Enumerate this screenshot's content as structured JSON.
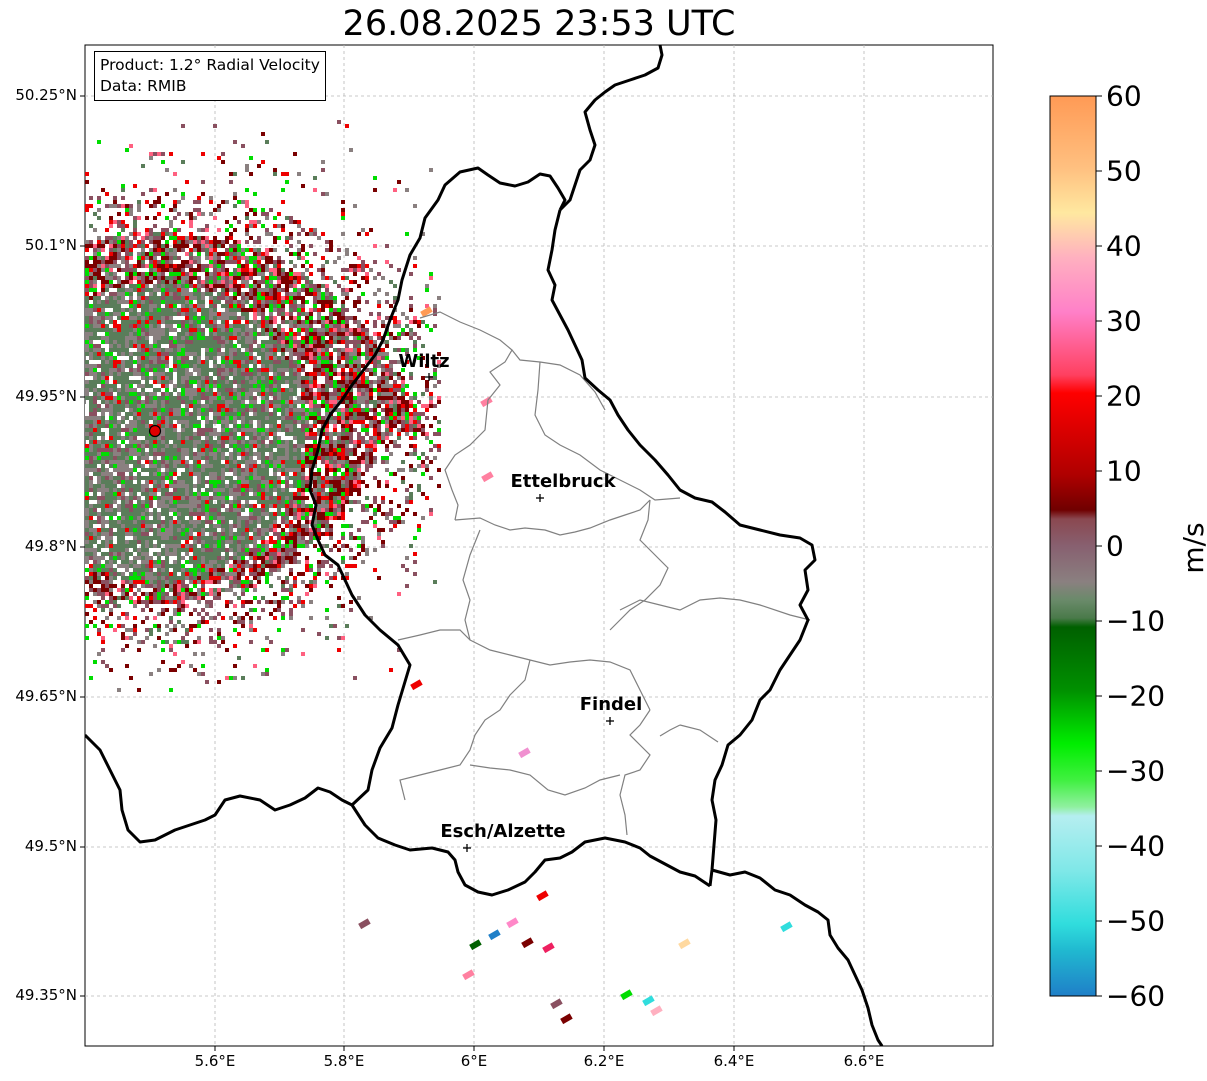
{
  "title": "26.08.2025 23:53 UTC",
  "info_box": {
    "product": "Product: 1.2° Radial Velocity",
    "data": "Data: RMIB"
  },
  "axes": {
    "lat_labels": [
      "50.25°N",
      "50.1°N",
      "49.95°N",
      "49.8°N",
      "49.65°N",
      "49.5°N",
      "49.35°N"
    ],
    "lat_values": [
      50.25,
      50.1,
      49.95,
      49.8,
      49.65,
      49.5,
      49.35
    ],
    "lon_labels": [
      "5.6°E",
      "5.8°E",
      "6°E",
      "6.2°E",
      "6.4°E",
      "6.6°E"
    ],
    "lon_values": [
      5.6,
      5.8,
      6.0,
      6.2,
      6.4,
      6.6
    ],
    "lat_range": [
      49.3,
      50.3
    ],
    "lon_range": [
      5.4,
      6.8
    ],
    "grid": true
  },
  "towns": [
    {
      "name": "Wiltz",
      "lat": 49.966,
      "lon": 5.932
    },
    {
      "name": "Ettelbruck",
      "lat": 49.847,
      "lon": 6.104
    },
    {
      "name": "Findel",
      "lat": 49.626,
      "lon": 6.211
    },
    {
      "name": "Esch/Alzette",
      "lat": 49.499,
      "lon": 5.991
    }
  ],
  "radar_site": {
    "lat": 49.914,
    "lon": 5.505
  },
  "colorbar": {
    "unit": "m/s",
    "range": [
      -60,
      60
    ],
    "ticks": [
      "60",
      "50",
      "40",
      "30",
      "20",
      "10",
      "0",
      "−10",
      "−20",
      "−30",
      "−40",
      "−50",
      "−60"
    ],
    "colors": {
      "orange": "#ff9a55",
      "peach": "#ffd9a0",
      "pink": "#ff88c8",
      "red": "#ee0000",
      "darkred": "#7a0000",
      "mauve": "#8a5060",
      "gray": "#8a8080",
      "graygreen": "#5a7d5a",
      "darkgreen": "#006000",
      "green": "#00dd00",
      "lightgreen": "#90f0a0",
      "paleblue": "#b5eef0",
      "cyan": "#30dddd",
      "blue": "#1f7fc8"
    }
  }
}
